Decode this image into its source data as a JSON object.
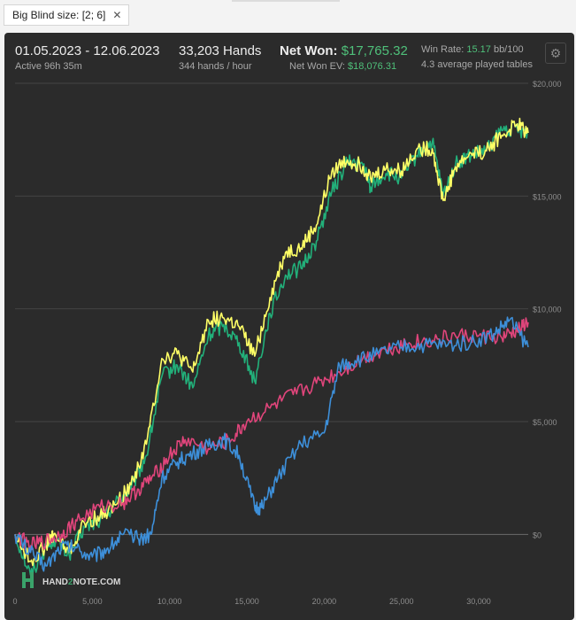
{
  "filter": {
    "label": "Big Blind size: [2; 6]",
    "close_glyph": "✕"
  },
  "header": {
    "date_range": "01.05.2023 - 12.06.2023",
    "active": "Active 96h 35m",
    "hands": "33,203 Hands",
    "hands_per_hour": "344 hands / hour",
    "net_won_label": "Net Won: ",
    "net_won_value": "$17,765.32",
    "net_won_ev_label": "Net Won  EV: ",
    "net_won_ev_value": "$18,076.31",
    "win_rate_label": "Win Rate: ",
    "win_rate_value": "15.17",
    "win_rate_unit": " bb/100",
    "tables": "4.3 average played tables",
    "settings_icon": "gear-icon"
  },
  "logo": {
    "text_a": "HAND",
    "text_b": "2",
    "text_c": "NOTE.COM"
  },
  "colors": {
    "panel": "#2b2b2b",
    "green": "#22b07a",
    "yellow": "#ffff66",
    "red": "#e0457b",
    "blue": "#3d8fd9",
    "accent": "#4fc07a"
  },
  "chart_data": {
    "type": "line",
    "xlim": [
      0,
      33203
    ],
    "ylim": [
      -2500,
      20000
    ],
    "x_ticks": [
      0,
      5000,
      10000,
      15000,
      20000,
      25000,
      30000
    ],
    "x_tick_labels": [
      "0",
      "5,000",
      "10,000",
      "15,000",
      "20,000",
      "25,000",
      "30,000"
    ],
    "y_ticks": [
      0,
      5000,
      10000,
      15000,
      20000
    ],
    "y_tick_labels": [
      "$0",
      "$5,000",
      "$10,000",
      "$15,000",
      "$20,000"
    ],
    "series": [
      {
        "color": "#22b07a",
        "x": [
          0,
          1000,
          2000,
          2500,
          3500,
          4500,
          5500,
          6500,
          7500,
          8500,
          9500,
          10500,
          11500,
          12500,
          13500,
          14500,
          15500,
          16500,
          17500,
          18500,
          19500,
          20500,
          21500,
          22500,
          23000,
          24000,
          25000,
          26000,
          27000,
          27700,
          28500,
          29500,
          30500,
          31500,
          32500,
          33203
        ],
        "y": [
          0,
          -1800,
          -600,
          -200,
          -900,
          300,
          600,
          1400,
          2000,
          3500,
          7000,
          7500,
          6500,
          8800,
          9300,
          8500,
          6800,
          9800,
          11500,
          11800,
          13000,
          15200,
          16500,
          16400,
          15400,
          16000,
          15800,
          16800,
          17400,
          15000,
          16400,
          16800,
          17000,
          17900,
          18000,
          17800
        ]
      },
      {
        "color": "#ffff66",
        "x": [
          0,
          1000,
          2000,
          2500,
          3500,
          4500,
          5500,
          6500,
          7500,
          8500,
          9500,
          10500,
          11500,
          12500,
          13500,
          14500,
          15500,
          16500,
          17500,
          18500,
          19500,
          20500,
          21500,
          22500,
          23000,
          24000,
          25000,
          26000,
          27000,
          27700,
          28500,
          29500,
          30500,
          31500,
          32500,
          33203
        ],
        "y": [
          0,
          -1200,
          -500,
          0,
          -800,
          500,
          800,
          1300,
          2200,
          4000,
          7800,
          8000,
          7200,
          9500,
          9600,
          9200,
          7900,
          10500,
          12500,
          12700,
          13700,
          16100,
          16600,
          16300,
          15800,
          16200,
          16100,
          17100,
          17100,
          14800,
          16300,
          16900,
          17000,
          17700,
          18200,
          17800
        ]
      },
      {
        "color": "#e0457b",
        "x": [
          0,
          1000,
          2000,
          3000,
          4000,
          5500,
          7000,
          8000,
          9000,
          10000,
          11000,
          12500,
          14000,
          15000,
          16500,
          18000,
          19500,
          21000,
          22500,
          24000,
          25500,
          27000,
          28500,
          30000,
          31500,
          32500,
          33203
        ],
        "y": [
          0,
          -500,
          -300,
          0,
          600,
          1200,
          1400,
          2000,
          2600,
          3500,
          4200,
          3800,
          4200,
          5000,
          5600,
          6200,
          6700,
          7200,
          7800,
          8200,
          8500,
          8600,
          8800,
          8800,
          8700,
          9000,
          9400
        ]
      },
      {
        "color": "#3d8fd9",
        "x": [
          0,
          1000,
          2000,
          3000,
          4000,
          5000,
          6000,
          7000,
          8000,
          8800,
          9500,
          10500,
          11500,
          12500,
          13500,
          14500,
          15500,
          16000,
          17000,
          18500,
          20000,
          21000,
          22000,
          23500,
          25000,
          26500,
          28000,
          29500,
          31000,
          32000,
          33203
        ],
        "y": [
          0,
          -800,
          -1400,
          -500,
          -600,
          -1000,
          -600,
          0,
          -200,
          0,
          2500,
          3200,
          3600,
          3900,
          4200,
          3500,
          1200,
          1200,
          2500,
          4000,
          4500,
          7500,
          7700,
          8000,
          8300,
          8400,
          8400,
          8500,
          8900,
          9500,
          8300
        ]
      }
    ]
  }
}
